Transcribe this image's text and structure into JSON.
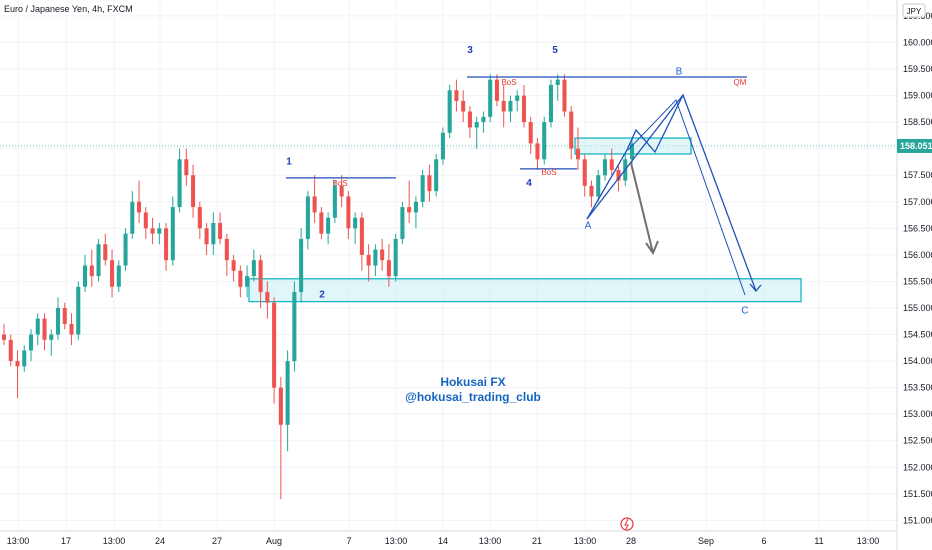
{
  "header": {
    "symbol_title": "Euro / Japanese Yen, 4h, FXCM",
    "currency": "JPY"
  },
  "watermark": {
    "line1": "Hokusai FX",
    "line2": "@hokusai_trading_club"
  },
  "last_price": {
    "label": "158.051",
    "value": 158.051
  },
  "colors": {
    "up": "#26a69a",
    "down": "#ef5350",
    "zone_fill": "#c6eef3",
    "zone_stroke": "#17b6c9",
    "level_blue": "#1e4fb8",
    "path_blue": "#2050b8",
    "arrow_gray": "#707070",
    "price_tag_bg": "#26a69a"
  },
  "chart_data": {
    "type": "candlestick",
    "symbol": "Euro / Japanese Yen, 4h, FXCM",
    "y_axis": {
      "currency": "JPY",
      "ylim": [
        150.8,
        160.8
      ],
      "ticks": [
        "151.000",
        "151.500",
        "152.000",
        "152.500",
        "153.000",
        "153.500",
        "154.000",
        "154.500",
        "155.000",
        "155.500",
        "156.000",
        "156.500",
        "157.000",
        "157.500",
        "158.000",
        "158.500",
        "159.000",
        "159.500",
        "160.000",
        "160.500"
      ]
    },
    "x_axis": {
      "tick_labels": [
        "13:00",
        "17",
        "13:00",
        "24",
        "27",
        "Aug",
        "7",
        "13:00",
        "14",
        "13:00",
        "21",
        "13:00",
        "28",
        "Sep",
        "6",
        "11",
        "13:00"
      ]
    },
    "candles": [
      [
        154.5,
        154.7,
        154.3,
        154.4
      ],
      [
        154.4,
        154.5,
        153.9,
        154.0
      ],
      [
        154.0,
        154.2,
        153.3,
        153.9
      ],
      [
        153.9,
        154.3,
        153.8,
        154.2
      ],
      [
        154.2,
        154.6,
        154.0,
        154.5
      ],
      [
        154.5,
        154.9,
        154.3,
        154.8
      ],
      [
        154.8,
        154.9,
        154.2,
        154.4
      ],
      [
        154.4,
        154.6,
        154.1,
        154.5
      ],
      [
        154.5,
        155.2,
        154.4,
        155.0
      ],
      [
        155.0,
        155.1,
        154.6,
        154.7
      ],
      [
        154.7,
        154.9,
        154.3,
        154.5
      ],
      [
        154.5,
        155.5,
        154.4,
        155.4
      ],
      [
        155.4,
        156.0,
        155.3,
        155.8
      ],
      [
        155.8,
        156.1,
        155.4,
        155.6
      ],
      [
        155.6,
        156.3,
        155.5,
        156.2
      ],
      [
        156.2,
        156.4,
        155.8,
        155.9
      ],
      [
        155.9,
        156.1,
        155.2,
        155.4
      ],
      [
        155.4,
        155.9,
        155.3,
        155.8
      ],
      [
        155.8,
        156.5,
        155.7,
        156.4
      ],
      [
        156.4,
        157.2,
        156.3,
        157.0
      ],
      [
        157.0,
        157.4,
        156.6,
        156.8
      ],
      [
        156.8,
        156.9,
        156.3,
        156.5
      ],
      [
        156.5,
        156.7,
        156.2,
        156.4
      ],
      [
        156.4,
        156.6,
        156.2,
        156.5
      ],
      [
        156.5,
        156.6,
        155.7,
        155.9
      ],
      [
        155.9,
        157.1,
        155.8,
        156.9
      ],
      [
        156.9,
        158.0,
        156.8,
        157.8
      ],
      [
        157.8,
        158.0,
        157.3,
        157.5
      ],
      [
        157.5,
        157.7,
        156.7,
        156.9
      ],
      [
        156.9,
        157.0,
        156.3,
        156.5
      ],
      [
        156.5,
        156.6,
        156.0,
        156.2
      ],
      [
        156.2,
        156.8,
        156.0,
        156.6
      ],
      [
        156.6,
        156.8,
        156.2,
        156.3
      ],
      [
        156.3,
        156.4,
        155.6,
        155.9
      ],
      [
        155.9,
        156.0,
        155.5,
        155.7
      ],
      [
        155.7,
        155.8,
        155.2,
        155.4
      ],
      [
        155.4,
        155.8,
        155.2,
        155.6
      ],
      [
        155.6,
        156.1,
        155.5,
        155.9
      ],
      [
        155.9,
        156.0,
        155.0,
        155.3
      ],
      [
        155.3,
        155.5,
        154.8,
        155.1
      ],
      [
        155.1,
        155.2,
        153.2,
        153.5
      ],
      [
        153.5,
        153.7,
        151.4,
        152.8
      ],
      [
        152.8,
        154.2,
        152.3,
        154.0
      ],
      [
        154.0,
        155.5,
        153.8,
        155.3
      ],
      [
        155.3,
        156.5,
        155.1,
        156.3
      ],
      [
        156.3,
        157.2,
        156.1,
        157.1
      ],
      [
        157.1,
        157.5,
        156.6,
        156.8
      ],
      [
        156.8,
        156.9,
        156.3,
        156.4
      ],
      [
        156.4,
        156.8,
        156.2,
        156.7
      ],
      [
        156.7,
        157.4,
        156.6,
        157.3
      ],
      [
        157.3,
        157.5,
        156.9,
        157.1
      ],
      [
        157.1,
        157.2,
        156.3,
        156.5
      ],
      [
        156.5,
        156.8,
        156.2,
        156.7
      ],
      [
        156.7,
        156.8,
        155.7,
        156.0
      ],
      [
        156.0,
        156.2,
        155.5,
        155.8
      ],
      [
        155.8,
        156.2,
        155.6,
        156.1
      ],
      [
        156.1,
        156.3,
        155.7,
        155.9
      ],
      [
        155.9,
        156.2,
        155.4,
        155.6
      ],
      [
        155.6,
        156.4,
        155.5,
        156.3
      ],
      [
        156.3,
        157.0,
        156.2,
        156.9
      ],
      [
        156.9,
        157.4,
        156.6,
        156.8
      ],
      [
        156.8,
        157.1,
        156.5,
        157.0
      ],
      [
        157.0,
        157.6,
        156.9,
        157.5
      ],
      [
        157.5,
        157.7,
        157.0,
        157.2
      ],
      [
        157.2,
        157.9,
        157.1,
        157.8
      ],
      [
        157.8,
        158.4,
        157.7,
        158.3
      ],
      [
        158.3,
        159.2,
        158.2,
        159.1
      ],
      [
        159.1,
        159.3,
        158.7,
        158.9
      ],
      [
        158.9,
        159.1,
        158.5,
        158.7
      ],
      [
        158.7,
        158.8,
        158.2,
        158.4
      ],
      [
        158.4,
        158.6,
        158.0,
        158.5
      ],
      [
        158.5,
        158.7,
        158.3,
        158.6
      ],
      [
        158.6,
        159.4,
        158.5,
        159.3
      ],
      [
        159.3,
        159.4,
        158.8,
        158.9
      ],
      [
        158.9,
        159.2,
        158.4,
        158.7
      ],
      [
        158.7,
        159.0,
        158.5,
        158.9
      ],
      [
        158.9,
        159.1,
        158.7,
        159.0
      ],
      [
        159.0,
        159.2,
        158.4,
        158.5
      ],
      [
        158.5,
        158.6,
        157.9,
        158.1
      ],
      [
        158.1,
        158.2,
        157.6,
        157.8
      ],
      [
        157.8,
        158.6,
        157.7,
        158.5
      ],
      [
        158.5,
        159.3,
        158.4,
        159.2
      ],
      [
        159.2,
        159.4,
        158.9,
        159.3
      ],
      [
        159.3,
        159.4,
        158.6,
        158.7
      ],
      [
        158.7,
        158.8,
        157.8,
        158.0
      ],
      [
        158.0,
        158.4,
        157.6,
        157.8
      ],
      [
        157.8,
        157.9,
        157.1,
        157.3
      ],
      [
        157.3,
        157.4,
        156.9,
        157.1
      ],
      [
        157.1,
        157.6,
        157.0,
        157.5
      ],
      [
        157.5,
        157.9,
        157.4,
        157.8
      ],
      [
        157.8,
        158.0,
        157.5,
        157.6
      ],
      [
        157.6,
        157.7,
        157.2,
        157.4
      ],
      [
        157.4,
        157.9,
        157.3,
        157.8
      ],
      [
        157.8,
        158.2,
        157.7,
        158.1
      ]
    ],
    "current_price": 158.051,
    "annotations": {
      "wave_labels": [
        {
          "text": "1",
          "price": 157.7
        },
        {
          "text": "2",
          "price": 155.2
        },
        {
          "text": "3",
          "price": 159.8
        },
        {
          "text": "4",
          "price": 157.3
        },
        {
          "text": "5",
          "price": 159.8
        }
      ],
      "abc_labels": [
        {
          "text": "A",
          "price": 156.5
        },
        {
          "text": "B",
          "price": 159.4
        },
        {
          "text": "C",
          "price": 154.9
        }
      ],
      "bos_labels": [
        {
          "text": "BoS",
          "price": 157.3
        },
        {
          "text": "BoS",
          "price": 159.2
        },
        {
          "text": "BoS",
          "price": 157.5
        }
      ],
      "qm_label": {
        "text": "QM",
        "price": 159.2
      },
      "levels": [
        {
          "name": "wave1-bos",
          "price": 157.45
        },
        {
          "name": "wave4-bos",
          "price": 157.62
        },
        {
          "name": "qm-level",
          "price": 159.35
        }
      ],
      "zones": [
        {
          "name": "demand-zone",
          "top": 155.55,
          "bottom": 155.12
        },
        {
          "name": "supply-zone",
          "top": 158.2,
          "bottom": 157.9
        }
      ]
    }
  }
}
